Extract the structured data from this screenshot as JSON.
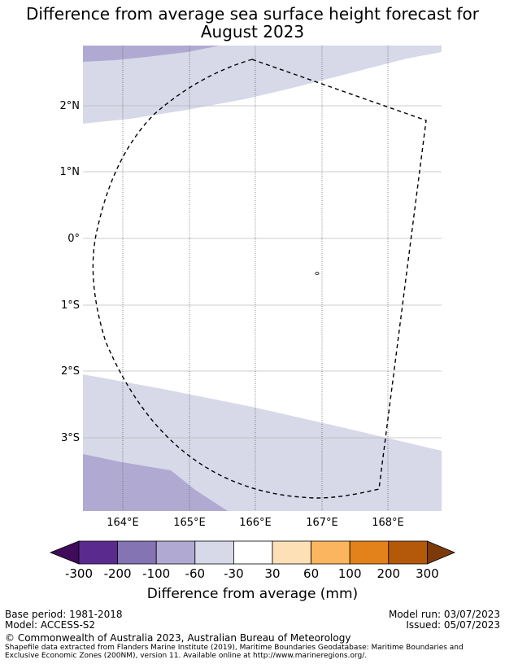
{
  "title": {
    "line1": "Difference from average sea surface height forecast for",
    "line2": "August 2023"
  },
  "map": {
    "lat_labels": [
      "2°N",
      "1°N",
      "0°",
      "1°S",
      "2°S",
      "3°S"
    ],
    "lon_labels": [
      "164°E",
      "165°E",
      "166°E",
      "167°E",
      "168°E"
    ],
    "colors": {
      "light_lavender": "#d7d8e8",
      "mid_lavender": "#b0aad2",
      "boundary": "#000000"
    }
  },
  "colorbar": {
    "title": "Difference from average (mm)",
    "ticks": [
      "-300",
      "-200",
      "-100",
      "-60",
      "-30",
      "30",
      "60",
      "100",
      "200",
      "300"
    ],
    "colors": [
      "#3f0b5a",
      "#5a2a8f",
      "#8474b3",
      "#b0aad2",
      "#d7d8e8",
      "#ffffff",
      "#fde0b6",
      "#fbb55e",
      "#e3821a",
      "#b4580a",
      "#7c3a0a"
    ]
  },
  "footer": {
    "base_period": "Base period: 1981-2018",
    "model": "Model: ACCESS-S2",
    "model_run": "Model run: 03/07/2023",
    "issued": "Issued: 05/07/2023",
    "copyright": "© Commonwealth of Australia 2023, Australian Bureau of Meteorology",
    "shapefile_line1": "Shapefile data extracted from Flanders Marine Institute (2019), Maritime Boundaries Geodatabase: Maritime Boundaries and",
    "shapefile_line2": "Exclusive Economic Zones (200NM), version 11. Available online at http://www.marineregions.org/."
  }
}
